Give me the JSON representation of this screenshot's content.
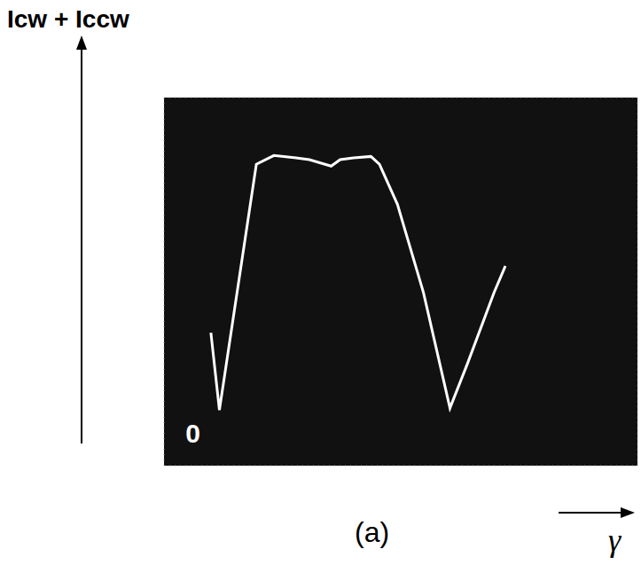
{
  "chart_data": {
    "type": "line",
    "x_label": "γ",
    "y_label": "Icw + Iccw",
    "caption": "(a)",
    "color": "#ffffff",
    "grid": true,
    "tick_labels": false,
    "x": [
      0.99,
      1.17,
      1.95,
      2.32,
      2.79,
      3.07,
      3.53,
      3.72,
      4.0,
      4.37,
      4.55,
      4.93,
      5.48,
      6.04,
      6.41,
      6.97,
      7.21
    ],
    "values": [
      2.89,
      1.21,
      6.55,
      6.74,
      6.69,
      6.65,
      6.51,
      6.65,
      6.69,
      6.72,
      6.55,
      5.68,
      3.76,
      1.25,
      2.22,
      3.76,
      4.34
    ],
    "xlim": [
      0,
      10
    ],
    "ylim": [
      0,
      8
    ],
    "xticks": [
      0,
      1,
      2,
      3,
      4,
      5,
      6,
      7,
      8,
      9,
      10
    ],
    "yticks": [
      0,
      1,
      2,
      3,
      4,
      5,
      6,
      7,
      8
    ],
    "annotations": [
      {
        "text": "0",
        "x": 0.61,
        "y": 0.71
      }
    ]
  }
}
